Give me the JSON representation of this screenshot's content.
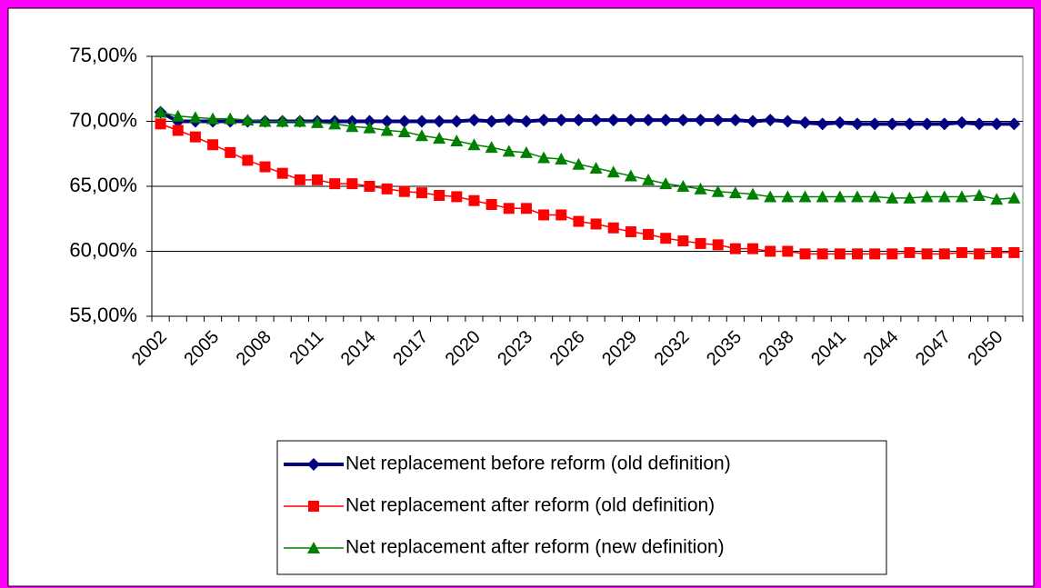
{
  "chart_data": {
    "type": "line",
    "categories": [
      "2002",
      null,
      null,
      "2005",
      null,
      null,
      "2008",
      null,
      null,
      "2011",
      null,
      null,
      "2014",
      null,
      null,
      "2017",
      null,
      null,
      "2020",
      null,
      null,
      "2023",
      null,
      null,
      "2026",
      null,
      null,
      "2029",
      null,
      null,
      "2032",
      null,
      null,
      "2035",
      null,
      null,
      "2038",
      null,
      null,
      "2041",
      null,
      null,
      "2044",
      null,
      null,
      "2047",
      null,
      null,
      "2050",
      null
    ],
    "ylim": [
      55,
      75
    ],
    "yticks": [
      {
        "value": 55,
        "label": "55,00%"
      },
      {
        "value": 60,
        "label": "60,00%"
      },
      {
        "value": 65,
        "label": "65,00%"
      },
      {
        "value": 70,
        "label": "70,00%"
      },
      {
        "value": 75,
        "label": "75,00%"
      }
    ],
    "grid": true,
    "legend": "bottom",
    "series": [
      {
        "name": "Net replacement before reform (old definition)",
        "color": "#000080",
        "marker": "diamond",
        "values": [
          70.7,
          70.0,
          70.0,
          70.0,
          70.0,
          70.0,
          70.0,
          70.0,
          70.0,
          70.0,
          70.0,
          70.0,
          70.0,
          70.0,
          70.0,
          70.0,
          70.0,
          70.0,
          70.1,
          70.0,
          70.1,
          70.0,
          70.1,
          70.1,
          70.1,
          70.1,
          70.1,
          70.1,
          70.1,
          70.1,
          70.1,
          70.1,
          70.1,
          70.1,
          70.0,
          70.1,
          70.0,
          69.9,
          69.8,
          69.9,
          69.8,
          69.8,
          69.8,
          69.8,
          69.8,
          69.8,
          69.9,
          69.8,
          69.8,
          69.8
        ]
      },
      {
        "name": "Net replacement after reform (old definition)",
        "color": "#ff0000",
        "marker": "square",
        "values": [
          69.8,
          69.3,
          68.8,
          68.2,
          67.6,
          67.0,
          66.5,
          66.0,
          65.5,
          65.5,
          65.2,
          65.2,
          65.0,
          64.8,
          64.6,
          64.5,
          64.3,
          64.2,
          63.9,
          63.6,
          63.3,
          63.3,
          62.8,
          62.8,
          62.3,
          62.1,
          61.8,
          61.5,
          61.3,
          61.0,
          60.8,
          60.6,
          60.5,
          60.2,
          60.2,
          60.0,
          60.0,
          59.8,
          59.8,
          59.8,
          59.8,
          59.8,
          59.8,
          59.9,
          59.8,
          59.8,
          59.9,
          59.8,
          59.9,
          59.9
        ]
      },
      {
        "name": "Net replacement after reform (new definition)",
        "color": "#008000",
        "marker": "triangle",
        "values": [
          70.7,
          70.4,
          70.3,
          70.2,
          70.2,
          70.1,
          70.0,
          70.0,
          70.0,
          69.9,
          69.8,
          69.6,
          69.5,
          69.3,
          69.2,
          68.9,
          68.7,
          68.5,
          68.2,
          68.0,
          67.7,
          67.6,
          67.2,
          67.1,
          66.7,
          66.4,
          66.1,
          65.8,
          65.5,
          65.2,
          65.0,
          64.8,
          64.6,
          64.5,
          64.4,
          64.2,
          64.2,
          64.2,
          64.2,
          64.2,
          64.2,
          64.2,
          64.1,
          64.1,
          64.2,
          64.2,
          64.2,
          64.3,
          64.0,
          64.1
        ]
      }
    ]
  }
}
